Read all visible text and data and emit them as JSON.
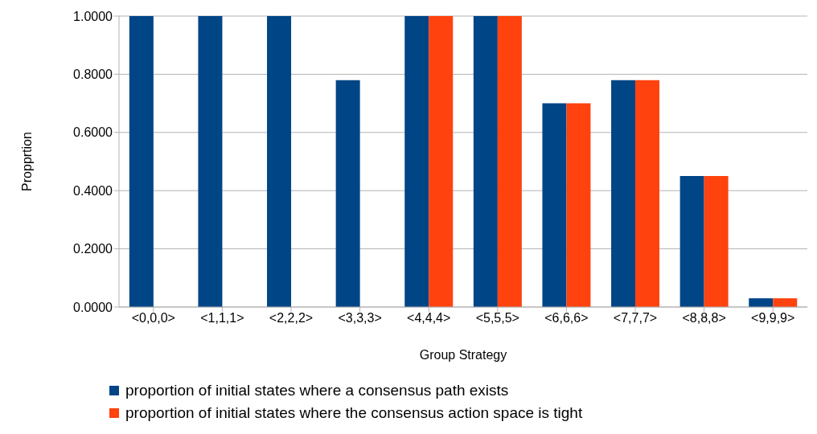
{
  "chart_data": {
    "type": "bar",
    "xlabel": "Group Strategy",
    "ylabel": "Propprtion",
    "categories": [
      "<0,0,0>",
      "<1,1,1>",
      "<2,2,2>",
      "<3,3,3>",
      "<4,4,4>",
      "<5,5,5>",
      "<6,6,6>",
      "<7,7,7>",
      "<8,8,8>",
      "<9,9,9>"
    ],
    "series": [
      {
        "name": "proportion of initial states where a consensus path exists",
        "color": "#004586",
        "values": [
          1,
          1,
          1,
          0.78,
          1,
          1,
          0.7,
          0.78,
          0.45,
          0.03
        ]
      },
      {
        "name": "proportion of initial states where the consensus action space is tight",
        "color": "#ff420e",
        "values": [
          0,
          0,
          0,
          0,
          1,
          1,
          0.7,
          0.78,
          0.45,
          0.03
        ]
      }
    ],
    "ylim": [
      0,
      1
    ],
    "yticks": [
      {
        "value": 0,
        "label": "0.0000"
      },
      {
        "value": 0.2,
        "label": "0.2000"
      },
      {
        "value": 0.4,
        "label": "0.4000"
      },
      {
        "value": 0.6,
        "label": "0.6000"
      },
      {
        "value": 0.8,
        "label": "0.8000"
      },
      {
        "value": 1,
        "label": "1.0000"
      }
    ],
    "grid": "y",
    "legend": "bottom"
  }
}
